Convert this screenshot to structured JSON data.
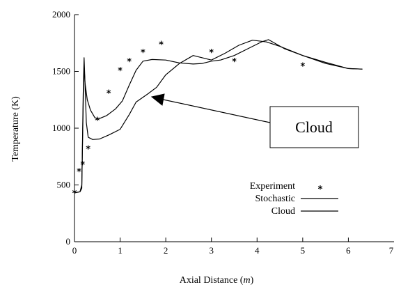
{
  "chart_data": {
    "type": "line",
    "title": "",
    "xlabel": "Axial Distance (m)",
    "xlabel_prefix": "Axial Distance (",
    "xlabel_unit": "m",
    "xlabel_suffix": ")",
    "ylabel": "Temperature (K)",
    "xlim": [
      0,
      7
    ],
    "ylim": [
      0,
      2000
    ],
    "x_ticks": [
      0,
      1,
      2,
      3,
      4,
      5,
      6,
      7
    ],
    "x_tick_labels": [
      "0",
      "1",
      "2",
      "3",
      "4",
      "5",
      "6",
      "7"
    ],
    "y_ticks": [
      0,
      500,
      1000,
      1500,
      2000
    ],
    "y_tick_labels": [
      "0",
      "500",
      "1000",
      "1500",
      "2000"
    ],
    "grid": false,
    "legend_position": "lower-right",
    "series": [
      {
        "name": "Experiment",
        "kind": "marker",
        "marker_symbol": "*",
        "points": [
          [
            0.0,
            430
          ],
          [
            0.1,
            620
          ],
          [
            0.18,
            680
          ],
          [
            0.3,
            820
          ],
          [
            0.5,
            1070
          ],
          [
            0.75,
            1310
          ],
          [
            1.0,
            1510
          ],
          [
            1.2,
            1590
          ],
          [
            1.5,
            1670
          ],
          [
            1.9,
            1740
          ],
          [
            3.0,
            1670
          ],
          [
            3.5,
            1590
          ],
          [
            5.0,
            1550
          ]
        ]
      },
      {
        "name": "Stochastic",
        "kind": "line",
        "points": [
          [
            0.0,
            430
          ],
          [
            0.12,
            440
          ],
          [
            0.16,
            500
          ],
          [
            0.19,
            1200
          ],
          [
            0.21,
            1550
          ],
          [
            0.23,
            1400
          ],
          [
            0.28,
            1250
          ],
          [
            0.35,
            1160
          ],
          [
            0.45,
            1090
          ],
          [
            0.55,
            1085
          ],
          [
            0.7,
            1110
          ],
          [
            0.9,
            1170
          ],
          [
            1.05,
            1240
          ],
          [
            1.2,
            1380
          ],
          [
            1.35,
            1510
          ],
          [
            1.5,
            1590
          ],
          [
            1.7,
            1605
          ],
          [
            2.0,
            1600
          ],
          [
            2.3,
            1575
          ],
          [
            2.6,
            1565
          ],
          [
            2.8,
            1570
          ],
          [
            3.0,
            1590
          ],
          [
            3.2,
            1600
          ],
          [
            3.5,
            1640
          ],
          [
            3.8,
            1700
          ],
          [
            4.1,
            1760
          ],
          [
            4.25,
            1780
          ],
          [
            4.6,
            1700
          ],
          [
            5.0,
            1640
          ],
          [
            5.5,
            1570
          ],
          [
            6.0,
            1525
          ],
          [
            6.3,
            1520
          ]
        ]
      },
      {
        "name": "Cloud",
        "kind": "line",
        "points": [
          [
            0.0,
            430
          ],
          [
            0.12,
            440
          ],
          [
            0.16,
            470
          ],
          [
            0.19,
            1300
          ],
          [
            0.21,
            1620
          ],
          [
            0.23,
            1400
          ],
          [
            0.26,
            1050
          ],
          [
            0.3,
            920
          ],
          [
            0.4,
            900
          ],
          [
            0.55,
            905
          ],
          [
            0.75,
            940
          ],
          [
            1.0,
            990
          ],
          [
            1.2,
            1120
          ],
          [
            1.35,
            1230
          ],
          [
            1.6,
            1300
          ],
          [
            1.8,
            1360
          ],
          [
            2.0,
            1470
          ],
          [
            2.3,
            1570
          ],
          [
            2.6,
            1640
          ],
          [
            2.8,
            1620
          ],
          [
            3.0,
            1600
          ],
          [
            3.3,
            1660
          ],
          [
            3.6,
            1730
          ],
          [
            3.9,
            1775
          ],
          [
            4.2,
            1760
          ],
          [
            4.5,
            1720
          ],
          [
            5.0,
            1640
          ],
          [
            5.5,
            1580
          ],
          [
            6.0,
            1525
          ],
          [
            6.3,
            1520
          ]
        ]
      }
    ],
    "annotation": {
      "text": "Cloud",
      "arrow_tip": [
        1.7,
        1310
      ]
    }
  }
}
